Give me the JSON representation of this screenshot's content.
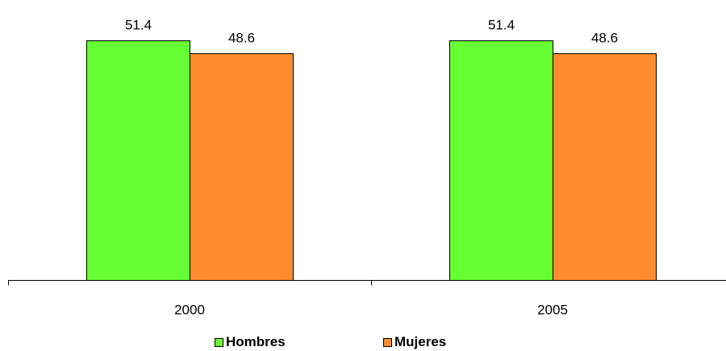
{
  "chart_data": {
    "type": "bar",
    "categories": [
      "2000",
      "2005"
    ],
    "series": [
      {
        "name": "Hombres",
        "values": [
          51.4,
          51.4
        ],
        "color": "#66ff33"
      },
      {
        "name": "Mujeres",
        "values": [
          48.6,
          48.6
        ],
        "color": "#ff8c2e"
      }
    ],
    "data_labels": [
      [
        "51.4",
        "51.4"
      ],
      [
        "48.6",
        "48.6"
      ]
    ],
    "ylim": [
      0,
      60
    ],
    "grid": false,
    "legend": "bottom"
  },
  "legend": {
    "items": [
      {
        "label": "Hombres",
        "color": "#66ff33"
      },
      {
        "label": "Mujeres",
        "color": "#ff8c2e"
      }
    ]
  }
}
